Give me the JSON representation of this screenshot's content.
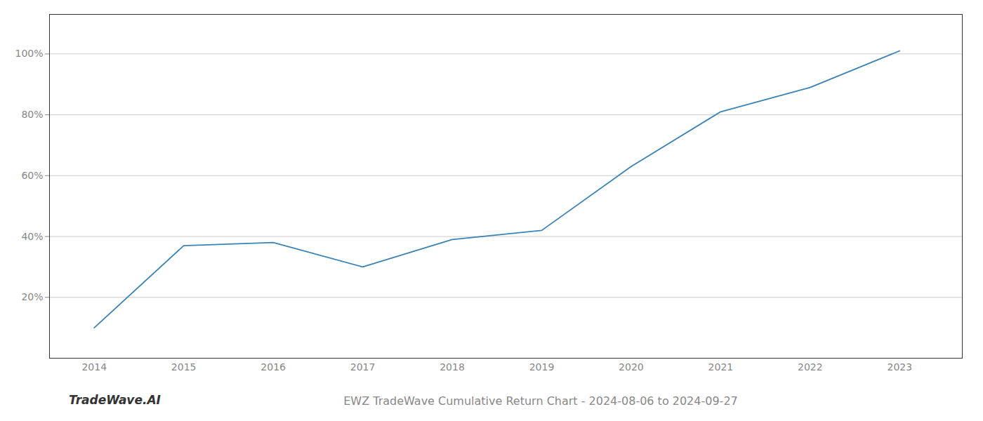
{
  "chart_data": {
    "type": "line",
    "title": "EWZ TradeWave Cumulative Return Chart - 2024-08-06 to 2024-09-27",
    "annotations": [
      {
        "text": "TradeWave.AI"
      }
    ],
    "x": [
      2014,
      2015,
      2016,
      2017,
      2018,
      2019,
      2020,
      2021,
      2022,
      2023
    ],
    "values": [
      0.1,
      0.37,
      0.38,
      0.3,
      0.39,
      0.42,
      0.63,
      0.81,
      0.89,
      1.01
    ],
    "color": "#3a82b5",
    "xlim": [
      2013.5,
      2023.7
    ],
    "xticks": [
      2014,
      2015,
      2016,
      2017,
      2018,
      2019,
      2020,
      2021,
      2022,
      2023
    ],
    "ylim": [
      0.0,
      1.13
    ],
    "yticks": [
      {
        "value": 0.2,
        "label": "20%"
      },
      {
        "value": 0.4,
        "label": "40%"
      },
      {
        "value": 0.6,
        "label": "60%"
      },
      {
        "value": 0.8,
        "label": "80%"
      },
      {
        "value": 1.0,
        "label": "100%"
      }
    ],
    "grid": true
  }
}
